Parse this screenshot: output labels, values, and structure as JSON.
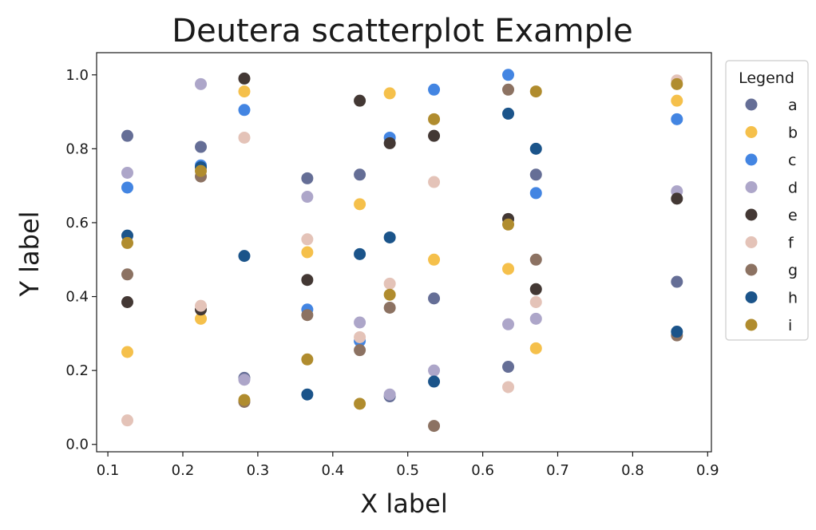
{
  "chart_data": {
    "type": "scatter",
    "title": "Deutera scatterplot Example",
    "xlabel": "X label",
    "ylabel": "Y label",
    "xlim": [
      0.085,
      0.905
    ],
    "ylim": [
      -0.02,
      1.06
    ],
    "xticks": [
      0.1,
      0.2,
      0.3,
      0.4,
      0.5,
      0.6,
      0.7,
      0.8,
      0.9
    ],
    "xtick_labels": [
      "0.1",
      "0.2",
      "0.3",
      "0.4",
      "0.5",
      "0.6",
      "0.7",
      "0.8",
      "0.9"
    ],
    "yticks": [
      0.0,
      0.2,
      0.4,
      0.6,
      0.8,
      1.0
    ],
    "ytick_labels": [
      "0.0",
      "0.2",
      "0.4",
      "0.6",
      "0.8",
      "1.0"
    ],
    "grid": false,
    "legend": {
      "title": "Legend",
      "placement": "outside-right"
    },
    "x": [
      0.126,
      0.224,
      0.282,
      0.366,
      0.436,
      0.476,
      0.535,
      0.634,
      0.671,
      0.859
    ],
    "series": [
      {
        "name": "a",
        "color": "#656e96",
        "values": [
          0.835,
          0.805,
          0.18,
          0.72,
          0.73,
          0.13,
          0.395,
          0.21,
          0.73,
          0.44
        ]
      },
      {
        "name": "b",
        "color": "#f5c04b",
        "values": [
          0.25,
          0.34,
          0.955,
          0.52,
          0.65,
          0.95,
          0.5,
          0.475,
          0.26,
          0.93
        ]
      },
      {
        "name": "c",
        "color": "#4385e2",
        "values": [
          0.695,
          0.755,
          0.905,
          0.365,
          0.28,
          0.83,
          0.96,
          1.0,
          0.68,
          0.88
        ]
      },
      {
        "name": "d",
        "color": "#ada6c9",
        "values": [
          0.735,
          0.975,
          0.175,
          0.67,
          0.33,
          0.135,
          0.2,
          0.325,
          0.34,
          0.685
        ]
      },
      {
        "name": "e",
        "color": "#433834",
        "values": [
          0.385,
          0.365,
          0.99,
          0.445,
          0.93,
          0.815,
          0.835,
          0.61,
          0.42,
          0.665
        ]
      },
      {
        "name": "f",
        "color": "#e4c3b8",
        "values": [
          0.065,
          0.375,
          0.83,
          0.555,
          0.29,
          0.435,
          0.71,
          0.155,
          0.385,
          0.985
        ]
      },
      {
        "name": "g",
        "color": "#8c7262",
        "values": [
          0.46,
          0.725,
          0.115,
          0.35,
          0.255,
          0.37,
          0.05,
          0.96,
          0.5,
          0.295
        ]
      },
      {
        "name": "h",
        "color": "#1b548a",
        "values": [
          0.565,
          0.75,
          0.51,
          0.135,
          0.515,
          0.56,
          0.17,
          0.895,
          0.8,
          0.305
        ]
      },
      {
        "name": "i",
        "color": "#b08c2e",
        "values": [
          0.545,
          0.74,
          0.12,
          0.23,
          0.11,
          0.405,
          0.88,
          0.595,
          0.955,
          0.975
        ]
      }
    ]
  }
}
